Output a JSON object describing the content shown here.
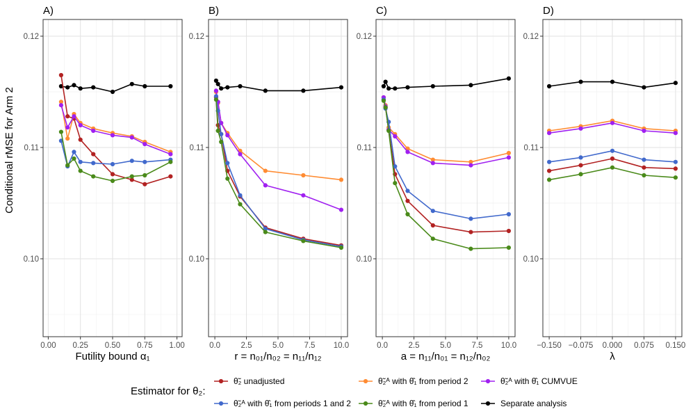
{
  "figure": {
    "ylabel": "Conditional rMSE for Arm 2",
    "legend_title": "Estimator for θ₂:"
  },
  "colors": {
    "unadjusted": "#b22222",
    "both": "#4169cc",
    "p2": "#ff8c33",
    "p1": "#4a8a1a",
    "cumvue": "#a020f0",
    "separate": "#000000"
  },
  "legend": [
    {
      "key": "unadjusted",
      "label": "θ̃₂ unadjusted"
    },
    {
      "key": "both",
      "label": "θ̃₂ᴬ with θ̂₁ from periods 1 and 2"
    },
    {
      "key": "p2",
      "label": "θ̃₂ᴬ with θ̂₁ from period 2"
    },
    {
      "key": "p1",
      "label": "θ̃₂ᴬ with θ̂₁ from period 1"
    },
    {
      "key": "cumvue",
      "label": "θ̃₂ᴬ with θ̂₁ CUMVUE"
    },
    {
      "key": "separate",
      "label": "Separate analysis"
    }
  ],
  "chart_data": [
    {
      "type": "line",
      "panel": "A)",
      "xlabel": "Futility bound α₁",
      "xlim": [
        -0.04,
        1.04
      ],
      "ylim": [
        0.093,
        0.1215
      ],
      "xticks": [
        0.0,
        0.25,
        0.5,
        0.75,
        1.0
      ],
      "xtick_labels": [
        "0.00",
        "0.25",
        "0.50",
        "0.75",
        "1.00"
      ],
      "yticks": [
        0.1,
        0.11,
        0.12
      ],
      "ytick_labels": [
        "0.10",
        "0.11",
        "0.12"
      ],
      "x": [
        0.1,
        0.15,
        0.2,
        0.25,
        0.35,
        0.5,
        0.65,
        0.75,
        0.95
      ],
      "series": [
        {
          "key": "separate",
          "values": [
            0.1155,
            0.1154,
            0.1156,
            0.1153,
            0.1154,
            0.115,
            0.1157,
            0.1155,
            0.1155
          ]
        },
        {
          "key": "unadjusted",
          "values": [
            0.1165,
            0.1128,
            0.1126,
            0.1107,
            0.1094,
            0.1076,
            0.1071,
            0.1067,
            0.1074
          ]
        },
        {
          "key": "p2",
          "values": [
            0.1141,
            0.1108,
            0.113,
            0.1122,
            0.1117,
            0.1113,
            0.111,
            0.1105,
            0.1096
          ]
        },
        {
          "key": "cumvue",
          "values": [
            0.1138,
            0.1118,
            0.1128,
            0.112,
            0.1115,
            0.1111,
            0.1109,
            0.1103,
            0.1094
          ]
        },
        {
          "key": "both",
          "values": [
            0.1106,
            0.1083,
            0.1096,
            0.1087,
            0.1086,
            0.1085,
            0.1088,
            0.1087,
            0.1089
          ]
        },
        {
          "key": "p1",
          "values": [
            0.1114,
            0.1084,
            0.109,
            0.1079,
            0.1074,
            0.107,
            0.1074,
            0.1075,
            0.1087
          ]
        }
      ]
    },
    {
      "type": "line",
      "panel": "B)",
      "xlabel": "r = n₀₁/n₀₂ = n₁₁/n₁₂",
      "xlim": [
        -0.5,
        10.5
      ],
      "ylim": [
        0.093,
        0.1215
      ],
      "xticks": [
        0,
        2.5,
        5,
        7.5,
        10
      ],
      "xtick_labels": [
        "0.0",
        "2.5",
        "5.0",
        "7.5",
        "10.0"
      ],
      "yticks": [
        0.1,
        0.11,
        0.12
      ],
      "ytick_labels": [
        "0.10",
        "0.11",
        "0.12"
      ],
      "x": [
        0.1,
        0.25,
        0.5,
        1,
        2,
        4,
        7,
        10
      ],
      "series": [
        {
          "key": "separate",
          "values": [
            0.116,
            0.1157,
            0.1153,
            0.1154,
            0.1155,
            0.1151,
            0.1151,
            0.1154
          ]
        },
        {
          "key": "unadjusted",
          "values": [
            0.1145,
            0.112,
            0.1112,
            0.1079,
            0.1056,
            0.1028,
            0.1018,
            0.1012
          ]
        },
        {
          "key": "p2",
          "values": [
            0.115,
            0.114,
            0.1122,
            0.1113,
            0.1097,
            0.1079,
            0.1075,
            0.1071
          ]
        },
        {
          "key": "cumvue",
          "values": [
            0.1151,
            0.1141,
            0.1122,
            0.1111,
            0.1094,
            0.1066,
            0.1057,
            0.1044
          ]
        },
        {
          "key": "both",
          "values": [
            0.1146,
            0.1133,
            0.1112,
            0.1086,
            0.1057,
            0.1027,
            0.1017,
            0.1011
          ]
        },
        {
          "key": "p1",
          "values": [
            0.1143,
            0.1115,
            0.1105,
            0.1072,
            0.1049,
            0.1024,
            0.1016,
            0.101
          ]
        }
      ]
    },
    {
      "type": "line",
      "panel": "C)",
      "xlabel": "a = n₁₁/n₀₁ = n₁₂/n₀₂",
      "xlim": [
        -0.5,
        10.5
      ],
      "ylim": [
        0.093,
        0.1215
      ],
      "xticks": [
        0,
        2.5,
        5,
        7.5,
        10
      ],
      "xtick_labels": [
        "0.0",
        "2.5",
        "5.0",
        "7.5",
        "10.0"
      ],
      "yticks": [
        0.1,
        0.11,
        0.12
      ],
      "ytick_labels": [
        "0.10",
        "0.11",
        "0.12"
      ],
      "x": [
        0.1,
        0.25,
        0.5,
        1,
        2,
        4,
        7,
        10
      ],
      "series": [
        {
          "key": "separate",
          "values": [
            0.1155,
            0.1159,
            0.1153,
            0.1153,
            0.1154,
            0.1155,
            0.1156,
            0.1162
          ]
        },
        {
          "key": "unadjusted",
          "values": [
            0.1143,
            0.1136,
            0.1116,
            0.1076,
            0.1052,
            0.103,
            0.1024,
            0.1025
          ]
        },
        {
          "key": "p2",
          "values": [
            0.1145,
            0.1138,
            0.1118,
            0.1112,
            0.1099,
            0.1089,
            0.1087,
            0.1095
          ]
        },
        {
          "key": "cumvue",
          "values": [
            0.1145,
            0.1137,
            0.1116,
            0.111,
            0.1096,
            0.1086,
            0.1084,
            0.1091
          ]
        },
        {
          "key": "both",
          "values": [
            0.1143,
            0.1135,
            0.1123,
            0.1083,
            0.1061,
            0.1043,
            0.1036,
            0.104
          ]
        },
        {
          "key": "p1",
          "values": [
            0.1142,
            0.1136,
            0.1115,
            0.1068,
            0.104,
            0.1018,
            0.1009,
            0.101
          ]
        }
      ]
    },
    {
      "type": "line",
      "panel": "D)",
      "xlabel": "λ",
      "xlim": [
        -0.165,
        0.165
      ],
      "ylim": [
        0.093,
        0.1215
      ],
      "xticks": [
        -0.15,
        -0.075,
        0,
        0.075,
        0.15
      ],
      "xtick_labels": [
        "−0.150",
        "−0.075",
        "0.000",
        "0.075",
        "0.150"
      ],
      "yticks": [
        0.1,
        0.11,
        0.12
      ],
      "ytick_labels": [
        "0.10",
        "0.11",
        "0.12"
      ],
      "x": [
        -0.15,
        -0.075,
        0,
        0.075,
        0.15
      ],
      "series": [
        {
          "key": "separate",
          "values": [
            0.1155,
            0.1159,
            0.1159,
            0.1154,
            0.1158
          ]
        },
        {
          "key": "p2",
          "values": [
            0.1115,
            0.1119,
            0.1124,
            0.1117,
            0.1115
          ]
        },
        {
          "key": "cumvue",
          "values": [
            0.1113,
            0.1117,
            0.1122,
            0.1115,
            0.1113
          ]
        },
        {
          "key": "both",
          "values": [
            0.1087,
            0.1091,
            0.1097,
            0.1089,
            0.1087
          ]
        },
        {
          "key": "unadjusted",
          "values": [
            0.1079,
            0.1084,
            0.109,
            0.1082,
            0.1081
          ]
        },
        {
          "key": "p1",
          "values": [
            0.1071,
            0.1076,
            0.1082,
            0.1075,
            0.1073
          ]
        }
      ]
    }
  ]
}
